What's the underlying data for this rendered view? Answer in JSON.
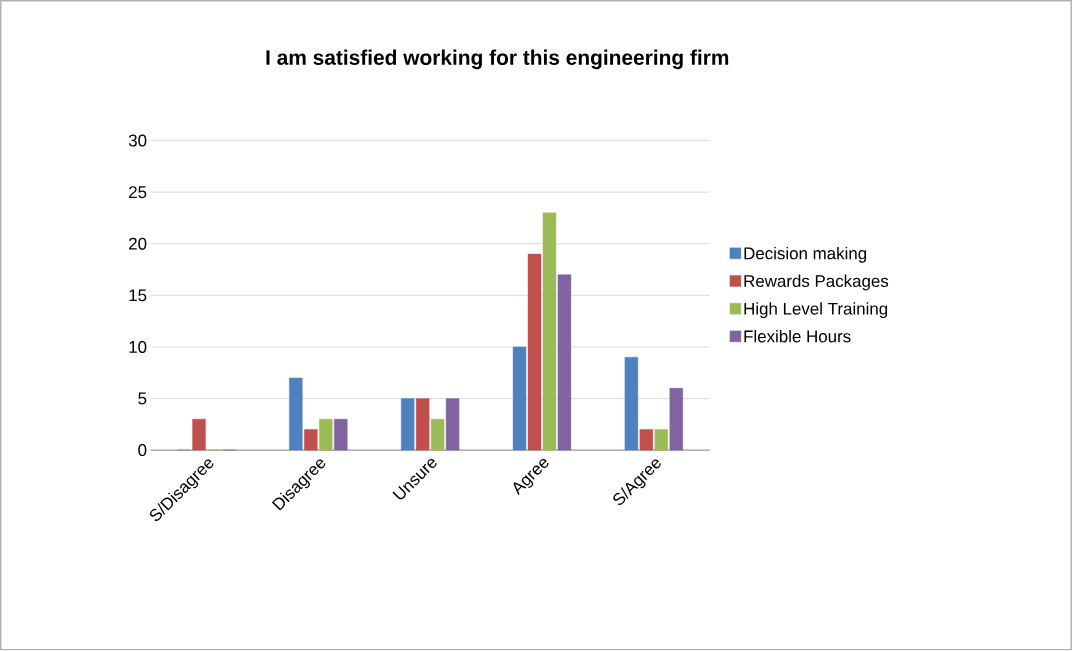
{
  "chart_data": {
    "type": "bar",
    "title": "I am satisfied working for this engineering firm",
    "categories": [
      "S/Disagree",
      "Disagree",
      "Unsure",
      "Agree",
      "S/Agree"
    ],
    "series": [
      {
        "name": "Decision making",
        "color": "#4f81bd",
        "values": [
          0,
          7,
          5,
          10,
          9
        ]
      },
      {
        "name": "Rewards Packages",
        "color": "#c0504d",
        "values": [
          3,
          2,
          5,
          19,
          2
        ]
      },
      {
        "name": "High Level Training",
        "color": "#9bbb59",
        "values": [
          0,
          3,
          3,
          23,
          2
        ]
      },
      {
        "name": "Flexible Hours",
        "color": "#8064a2",
        "values": [
          0,
          3,
          5,
          17,
          6
        ]
      }
    ],
    "ylim": [
      0,
      30
    ],
    "yticks": [
      0,
      5,
      10,
      15,
      20,
      25,
      30
    ],
    "grid": "y",
    "legend": "right"
  }
}
